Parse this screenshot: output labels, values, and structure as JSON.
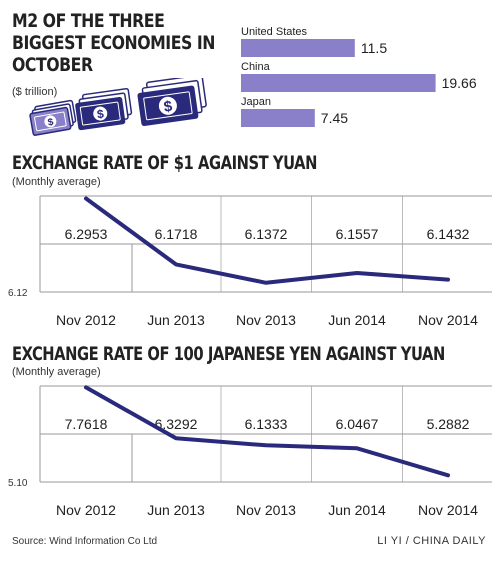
{
  "chart_data": [
    {
      "type": "bar",
      "title": "M2 OF THE THREE BIGGEST ECONOMIES IN OCTOBER",
      "subtitle": "($ trillion)",
      "categories": [
        "United States",
        "China",
        "Japan"
      ],
      "values": [
        11.5,
        19.66,
        7.45
      ],
      "value_labels": [
        "11.5",
        "19.66",
        "7.45"
      ],
      "orientation": "horizontal",
      "color": "#8a80c9",
      "xlim": [
        0,
        20
      ]
    },
    {
      "type": "line",
      "title": "EXCHANGE RATE OF $1 AGAINST YUAN",
      "subtitle": "(Monthly average)",
      "x": [
        "Nov 2012",
        "Jun 2013",
        "Nov 2013",
        "Jun 2014",
        "Nov 2014"
      ],
      "values": [
        6.2953,
        6.1718,
        6.1372,
        6.1557,
        6.1432
      ],
      "value_labels": [
        "6.2953",
        "6.1718",
        "6.1372",
        "6.1557",
        "6.1432"
      ],
      "y_min_label": "6.12",
      "ylim": [
        6.12,
        6.3
      ],
      "color": "#2a2a7c"
    },
    {
      "type": "line",
      "title": "EXCHANGE RATE OF 100 JAPANESE YEN AGAINST YUAN",
      "subtitle": "(Monthly average)",
      "x": [
        "Nov 2012",
        "Jun 2013",
        "Nov 2013",
        "Jun 2014",
        "Nov 2014"
      ],
      "values": [
        7.7618,
        6.3292,
        6.1333,
        6.0467,
        5.2882
      ],
      "value_labels": [
        "7.7618",
        "6.3292",
        "6.1333",
        "6.0467",
        "5.2882"
      ],
      "y_min_label": "5.10",
      "ylim": [
        5.1,
        7.8
      ],
      "color": "#2a2a7c"
    }
  ],
  "footer": {
    "source": "Source: Wind Information Co Ltd",
    "credit": "LI YI / CHINA DAILY"
  },
  "decoration": {
    "icon": "banknote-stack-icon",
    "colors": [
      "#8a80c9",
      "#2a2a7c"
    ]
  }
}
